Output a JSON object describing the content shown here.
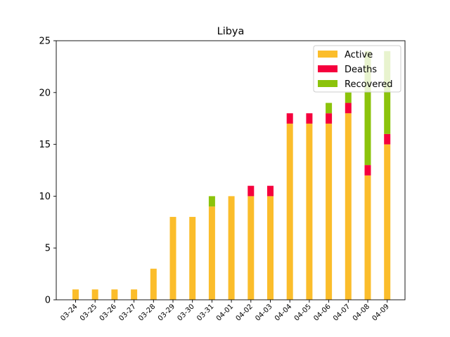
{
  "chart_data": {
    "type": "bar",
    "stacked": true,
    "title": "Libya",
    "xlabel": "",
    "ylabel": "",
    "ylim": [
      0,
      25
    ],
    "yticks": [
      0,
      5,
      10,
      15,
      20,
      25
    ],
    "grid": false,
    "legend_position": "top-right",
    "categories": [
      "03-24",
      "03-25",
      "03-26",
      "03-27",
      "03-28",
      "03-29",
      "03-30",
      "03-31",
      "04-01",
      "04-02",
      "04-03",
      "04-04",
      "04-05",
      "04-06",
      "04-07",
      "04-08",
      "04-09"
    ],
    "series": [
      {
        "name": "Active",
        "color": "#fbbd2b",
        "values": [
          1,
          1,
          1,
          1,
          3,
          8,
          8,
          9,
          10,
          10,
          10,
          17,
          17,
          17,
          18,
          12,
          15
        ]
      },
      {
        "name": "Deaths",
        "color": "#f5003d",
        "values": [
          0,
          0,
          0,
          0,
          0,
          0,
          0,
          0,
          0,
          1,
          1,
          1,
          1,
          1,
          1,
          1,
          1
        ]
      },
      {
        "name": "Recovered",
        "color": "#8bc30b",
        "values": [
          0,
          0,
          0,
          0,
          0,
          0,
          0,
          1,
          0,
          0,
          0,
          0,
          0,
          1,
          1,
          11,
          8
        ]
      }
    ]
  }
}
